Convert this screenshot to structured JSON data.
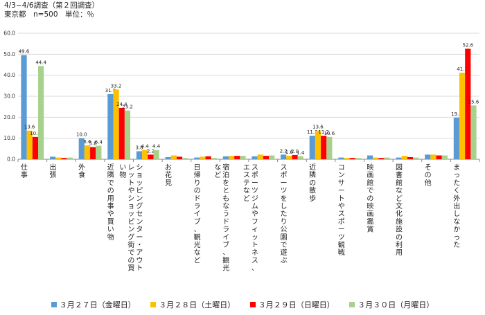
{
  "header": {
    "line1": "4/3~4/6調査（第２回調査）",
    "line2": "東京都　n=500　単位：％"
  },
  "colors": {
    "mar27": "#5b9bd5",
    "mar28": "#ffc000",
    "mar29": "#ff0000",
    "mar30": "#a9d18e",
    "grid": "#d9d9d9",
    "axis": "#888888"
  },
  "chart_data": {
    "type": "bar",
    "ylim": [
      0,
      60
    ],
    "yticks": [
      "0.0",
      "10.0",
      "20.0",
      "30.0",
      "40.0",
      "50.0",
      "60.0"
    ],
    "grid": true,
    "legend_position": "bottom",
    "categories": [
      "仕事",
      "出張",
      "外食",
      "近隣での用事や買い物",
      "ショッピングセンター・アウトレットやショッピング街での買い物",
      "お花見",
      "日帰りのドライブ、観光など",
      "宿泊をともなうドライブ、観光など",
      "スポーツジムやフィットネス、エステなど",
      "スポーツをしたり公園で遊ぶ",
      "近隣の散歩",
      "コンサートやスポーツ観戦",
      "映画館での映画鑑賞",
      "図書館など文化施設の利用",
      "その他",
      "まったく外出しなかった"
    ],
    "series": [
      {
        "name": "３月２７日（金曜日）",
        "color": "#5b9bd5",
        "values": [
          49.6,
          1.2,
          10.0,
          31.0,
          3.8,
          1.0,
          0.8,
          1.4,
          1.4,
          2.2,
          11.2,
          0.8,
          1.8,
          0.8,
          2.2,
          19.8
        ]
      },
      {
        "name": "３月２８日（土曜日）",
        "color": "#ffc000",
        "values": [
          13.6,
          0.8,
          6.6,
          33.2,
          4.4,
          1.8,
          1.2,
          1.6,
          2.2,
          1.6,
          13.6,
          0.6,
          0.8,
          1.6,
          2.2,
          41.2
        ]
      },
      {
        "name": "３月２９日（日曜日）",
        "color": "#ff0000",
        "values": [
          10.6,
          0.6,
          5.8,
          24.4,
          2.2,
          1.2,
          1.4,
          1.6,
          1.6,
          2.0,
          11.2,
          0.6,
          0.6,
          1.0,
          1.8,
          52.6
        ]
      },
      {
        "name": "３月３０日（月曜日）",
        "color": "#a9d18e",
        "values": [
          44.4,
          0.8,
          6.4,
          23.2,
          4.4,
          0.6,
          0.6,
          1.6,
          1.8,
          1.4,
          10.6,
          0.6,
          0.8,
          0.8,
          1.8,
          25.6
        ]
      }
    ],
    "labeled_categories": [
      0,
      2,
      3,
      4,
      9,
      10,
      15
    ]
  }
}
